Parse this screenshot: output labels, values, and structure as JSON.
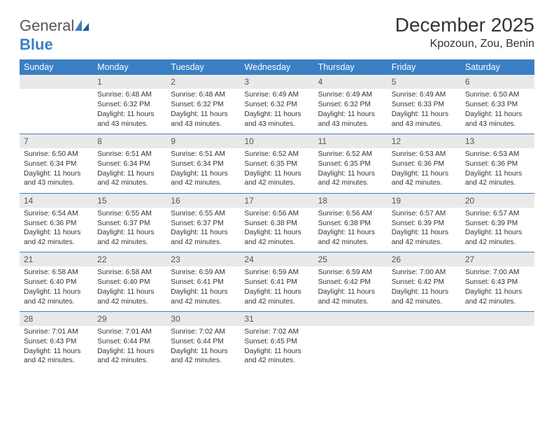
{
  "logo": {
    "text1": "General",
    "text2": "Blue"
  },
  "title": "December 2025",
  "location": "Kpozoun, Zou, Benin",
  "colors": {
    "header_bg": "#3b7fc4",
    "header_text": "#ffffff",
    "daynum_bg": "#e9e9e9",
    "row_border": "#3b7fc4",
    "body_text": "#333333",
    "logo_gray": "#555555",
    "logo_blue": "#3b7fc4"
  },
  "dayHeaders": [
    "Sunday",
    "Monday",
    "Tuesday",
    "Wednesday",
    "Thursday",
    "Friday",
    "Saturday"
  ],
  "weeks": [
    [
      null,
      {
        "n": "1",
        "sr": "Sunrise: 6:48 AM",
        "ss": "Sunset: 6:32 PM",
        "dl": "Daylight: 11 hours and 43 minutes."
      },
      {
        "n": "2",
        "sr": "Sunrise: 6:48 AM",
        "ss": "Sunset: 6:32 PM",
        "dl": "Daylight: 11 hours and 43 minutes."
      },
      {
        "n": "3",
        "sr": "Sunrise: 6:49 AM",
        "ss": "Sunset: 6:32 PM",
        "dl": "Daylight: 11 hours and 43 minutes."
      },
      {
        "n": "4",
        "sr": "Sunrise: 6:49 AM",
        "ss": "Sunset: 6:32 PM",
        "dl": "Daylight: 11 hours and 43 minutes."
      },
      {
        "n": "5",
        "sr": "Sunrise: 6:49 AM",
        "ss": "Sunset: 6:33 PM",
        "dl": "Daylight: 11 hours and 43 minutes."
      },
      {
        "n": "6",
        "sr": "Sunrise: 6:50 AM",
        "ss": "Sunset: 6:33 PM",
        "dl": "Daylight: 11 hours and 43 minutes."
      }
    ],
    [
      {
        "n": "7",
        "sr": "Sunrise: 6:50 AM",
        "ss": "Sunset: 6:34 PM",
        "dl": "Daylight: 11 hours and 43 minutes."
      },
      {
        "n": "8",
        "sr": "Sunrise: 6:51 AM",
        "ss": "Sunset: 6:34 PM",
        "dl": "Daylight: 11 hours and 42 minutes."
      },
      {
        "n": "9",
        "sr": "Sunrise: 6:51 AM",
        "ss": "Sunset: 6:34 PM",
        "dl": "Daylight: 11 hours and 42 minutes."
      },
      {
        "n": "10",
        "sr": "Sunrise: 6:52 AM",
        "ss": "Sunset: 6:35 PM",
        "dl": "Daylight: 11 hours and 42 minutes."
      },
      {
        "n": "11",
        "sr": "Sunrise: 6:52 AM",
        "ss": "Sunset: 6:35 PM",
        "dl": "Daylight: 11 hours and 42 minutes."
      },
      {
        "n": "12",
        "sr": "Sunrise: 6:53 AM",
        "ss": "Sunset: 6:36 PM",
        "dl": "Daylight: 11 hours and 42 minutes."
      },
      {
        "n": "13",
        "sr": "Sunrise: 6:53 AM",
        "ss": "Sunset: 6:36 PM",
        "dl": "Daylight: 11 hours and 42 minutes."
      }
    ],
    [
      {
        "n": "14",
        "sr": "Sunrise: 6:54 AM",
        "ss": "Sunset: 6:36 PM",
        "dl": "Daylight: 11 hours and 42 minutes."
      },
      {
        "n": "15",
        "sr": "Sunrise: 6:55 AM",
        "ss": "Sunset: 6:37 PM",
        "dl": "Daylight: 11 hours and 42 minutes."
      },
      {
        "n": "16",
        "sr": "Sunrise: 6:55 AM",
        "ss": "Sunset: 6:37 PM",
        "dl": "Daylight: 11 hours and 42 minutes."
      },
      {
        "n": "17",
        "sr": "Sunrise: 6:56 AM",
        "ss": "Sunset: 6:38 PM",
        "dl": "Daylight: 11 hours and 42 minutes."
      },
      {
        "n": "18",
        "sr": "Sunrise: 6:56 AM",
        "ss": "Sunset: 6:38 PM",
        "dl": "Daylight: 11 hours and 42 minutes."
      },
      {
        "n": "19",
        "sr": "Sunrise: 6:57 AM",
        "ss": "Sunset: 6:39 PM",
        "dl": "Daylight: 11 hours and 42 minutes."
      },
      {
        "n": "20",
        "sr": "Sunrise: 6:57 AM",
        "ss": "Sunset: 6:39 PM",
        "dl": "Daylight: 11 hours and 42 minutes."
      }
    ],
    [
      {
        "n": "21",
        "sr": "Sunrise: 6:58 AM",
        "ss": "Sunset: 6:40 PM",
        "dl": "Daylight: 11 hours and 42 minutes."
      },
      {
        "n": "22",
        "sr": "Sunrise: 6:58 AM",
        "ss": "Sunset: 6:40 PM",
        "dl": "Daylight: 11 hours and 42 minutes."
      },
      {
        "n": "23",
        "sr": "Sunrise: 6:59 AM",
        "ss": "Sunset: 6:41 PM",
        "dl": "Daylight: 11 hours and 42 minutes."
      },
      {
        "n": "24",
        "sr": "Sunrise: 6:59 AM",
        "ss": "Sunset: 6:41 PM",
        "dl": "Daylight: 11 hours and 42 minutes."
      },
      {
        "n": "25",
        "sr": "Sunrise: 6:59 AM",
        "ss": "Sunset: 6:42 PM",
        "dl": "Daylight: 11 hours and 42 minutes."
      },
      {
        "n": "26",
        "sr": "Sunrise: 7:00 AM",
        "ss": "Sunset: 6:42 PM",
        "dl": "Daylight: 11 hours and 42 minutes."
      },
      {
        "n": "27",
        "sr": "Sunrise: 7:00 AM",
        "ss": "Sunset: 6:43 PM",
        "dl": "Daylight: 11 hours and 42 minutes."
      }
    ],
    [
      {
        "n": "28",
        "sr": "Sunrise: 7:01 AM",
        "ss": "Sunset: 6:43 PM",
        "dl": "Daylight: 11 hours and 42 minutes."
      },
      {
        "n": "29",
        "sr": "Sunrise: 7:01 AM",
        "ss": "Sunset: 6:44 PM",
        "dl": "Daylight: 11 hours and 42 minutes."
      },
      {
        "n": "30",
        "sr": "Sunrise: 7:02 AM",
        "ss": "Sunset: 6:44 PM",
        "dl": "Daylight: 11 hours and 42 minutes."
      },
      {
        "n": "31",
        "sr": "Sunrise: 7:02 AM",
        "ss": "Sunset: 6:45 PM",
        "dl": "Daylight: 11 hours and 42 minutes."
      },
      null,
      null,
      null
    ]
  ]
}
